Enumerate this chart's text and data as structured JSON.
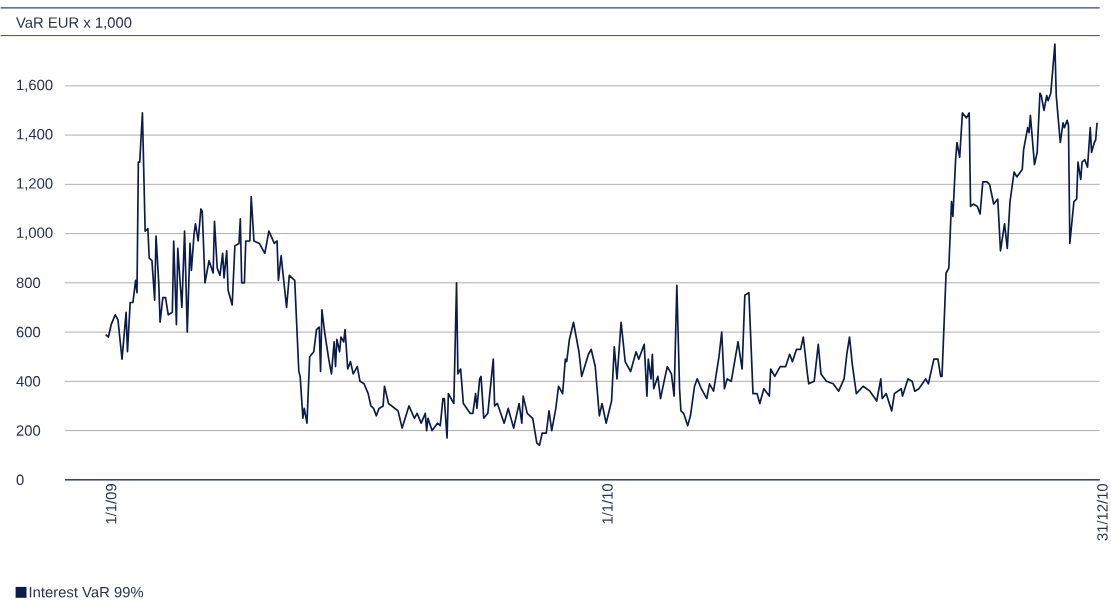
{
  "chart_data": {
    "type": "line",
    "ylabel": "VaR EUR x 1,000",
    "x": [
      "2009-01-01",
      "2009-01-03",
      "2009-01-05",
      "2009-01-08",
      "2009-01-10",
      "2009-01-13",
      "2009-01-16",
      "2009-01-17",
      "2009-01-19",
      "2009-01-21",
      "2009-01-23",
      "2009-01-24",
      "2009-01-25",
      "2009-01-26",
      "2009-01-28",
      "2009-01-30",
      "2009-02-01",
      "2009-02-02",
      "2009-02-04",
      "2009-02-06",
      "2009-02-07",
      "2009-02-09",
      "2009-02-10",
      "2009-02-12",
      "2009-02-14",
      "2009-02-16",
      "2009-02-19",
      "2009-02-20",
      "2009-02-22",
      "2009-02-23",
      "2009-02-26",
      "2009-02-28",
      "2009-03-02",
      "2009-03-04",
      "2009-03-05",
      "2009-03-07",
      "2009-03-08",
      "2009-03-10",
      "2009-03-12",
      "2009-03-13",
      "2009-03-15",
      "2009-03-18",
      "2009-03-21",
      "2009-03-22",
      "2009-03-24",
      "2009-03-26",
      "2009-03-28",
      "2009-03-29",
      "2009-03-31",
      "2009-04-01",
      "2009-04-04",
      "2009-04-06",
      "2009-04-09",
      "2009-04-10",
      "2009-04-11",
      "2009-04-13",
      "2009-04-14",
      "2009-04-17",
      "2009-04-18",
      "2009-04-20",
      "2009-04-24",
      "2009-04-28",
      "2009-05-01",
      "2009-05-05",
      "2009-05-07",
      "2009-05-08",
      "2009-05-10",
      "2009-05-14",
      "2009-05-16",
      "2009-05-20",
      "2009-05-23",
      "2009-05-24",
      "2009-05-26",
      "2009-05-27",
      "2009-05-29",
      "2009-05-31",
      "2009-06-03",
      "2009-06-05",
      "2009-06-07",
      "2009-06-08",
      "2009-06-09",
      "2009-06-11",
      "2009-06-14",
      "2009-06-16",
      "2009-06-18",
      "2009-06-19",
      "2009-06-20",
      "2009-06-22",
      "2009-06-23",
      "2009-06-25",
      "2009-06-26",
      "2009-06-28",
      "2009-06-30",
      "2009-07-02",
      "2009-07-05",
      "2009-07-07",
      "2009-07-10",
      "2009-07-13",
      "2009-07-15",
      "2009-07-17",
      "2009-07-19",
      "2009-07-21",
      "2009-07-24",
      "2009-07-25",
      "2009-07-28",
      "2009-08-04",
      "2009-08-07",
      "2009-08-12",
      "2009-08-16",
      "2009-08-18",
      "2009-08-21",
      "2009-08-24",
      "2009-08-25",
      "2009-08-26",
      "2009-08-29",
      "2009-09-02",
      "2009-09-04",
      "2009-09-06",
      "2009-09-07",
      "2009-09-09",
      "2009-09-10",
      "2009-09-14",
      "2009-09-16",
      "2009-09-17",
      "2009-09-19",
      "2009-09-21",
      "2009-09-26",
      "2009-09-28",
      "2009-09-30",
      "2009-10-01",
      "2009-10-03",
      "2009-10-04",
      "2009-10-06",
      "2009-10-09",
      "2009-10-13",
      "2009-10-14",
      "2009-10-16",
      "2009-10-21",
      "2009-10-24",
      "2009-10-28",
      "2009-11-01",
      "2009-11-03",
      "2009-11-04",
      "2009-11-07",
      "2009-11-11",
      "2009-11-14",
      "2009-11-16",
      "2009-11-18",
      "2009-11-21",
      "2009-11-23",
      "2009-11-25",
      "2009-11-28",
      "2009-11-30",
      "2009-12-03",
      "2009-12-05",
      "2009-12-06",
      "2009-12-08",
      "2009-12-11",
      "2009-12-15",
      "2009-12-17",
      "2009-12-22",
      "2009-12-24",
      "2009-12-27",
      "2009-12-30",
      "2010-01-01",
      "2010-01-04",
      "2010-01-08",
      "2010-01-10",
      "2010-01-12",
      "2010-01-15",
      "2010-01-18",
      "2010-01-22",
      "2010-01-26",
      "2010-01-28",
      "2010-02-01",
      "2010-02-03",
      "2010-02-04",
      "2010-02-06",
      "2010-02-07",
      "2010-02-08",
      "2010-02-11",
      "2010-02-13",
      "2010-02-16",
      "2010-02-18",
      "2010-02-21",
      "2010-02-23",
      "2010-02-25",
      "2010-02-27",
      "2010-02-28",
      "2010-03-02",
      "2010-03-05",
      "2010-03-07",
      "2010-03-10",
      "2010-03-12",
      "2010-03-15",
      "2010-03-19",
      "2010-03-21",
      "2010-03-24",
      "2010-03-28",
      "2010-03-30",
      "2010-04-01",
      "2010-04-03",
      "2010-04-06",
      "2010-04-11",
      "2010-04-14",
      "2010-04-16",
      "2010-04-19",
      "2010-04-22",
      "2010-04-25",
      "2010-04-27",
      "2010-04-30",
      "2010-05-04",
      "2010-05-05",
      "2010-05-08",
      "2010-05-12",
      "2010-05-16",
      "2010-05-19",
      "2010-05-21",
      "2010-05-24",
      "2010-05-27",
      "2010-05-29",
      "2010-06-01",
      "2010-06-02",
      "2010-06-06",
      "2010-06-09",
      "2010-06-11",
      "2010-06-15",
      "2010-06-20",
      "2010-06-24",
      "2010-06-28",
      "2010-06-30",
      "2010-07-02",
      "2010-07-04",
      "2010-07-07",
      "2010-07-12",
      "2010-07-17",
      "2010-07-22",
      "2010-07-25",
      "2010-07-26",
      "2010-07-29",
      "2010-08-02",
      "2010-08-04",
      "2010-08-09",
      "2010-08-10",
      "2010-08-14",
      "2010-08-17",
      "2010-08-19",
      "2010-08-22",
      "2010-08-27",
      "2010-08-29",
      "2010-09-02",
      "2010-09-05",
      "2010-09-07",
      "2010-09-08",
      "2010-09-11",
      "2010-09-13",
      "2010-09-15",
      "2010-09-16",
      "2010-09-18",
      "2010-09-19",
      "2010-09-21",
      "2010-09-23",
      "2010-09-26",
      "2010-09-28",
      "2010-09-29",
      "2010-10-01",
      "2010-10-04",
      "2010-10-06",
      "2010-10-08",
      "2010-10-11",
      "2010-10-13",
      "2010-10-16",
      "2010-10-19",
      "2010-10-21",
      "2010-10-24",
      "2010-10-26",
      "2010-10-28",
      "2010-10-31",
      "2010-11-02",
      "2010-11-06",
      "2010-11-07",
      "2010-11-10",
      "2010-11-11",
      "2010-11-12",
      "2010-11-15",
      "2010-11-17",
      "2010-11-19",
      "2010-11-20",
      "2010-11-22",
      "2010-11-24",
      "2010-11-25",
      "2010-11-27",
      "2010-11-30",
      "2010-12-01",
      "2010-12-04",
      "2010-12-06",
      "2010-12-07",
      "2010-12-09",
      "2010-12-10",
      "2010-12-11",
      "2010-12-14",
      "2010-12-16",
      "2010-12-17",
      "2010-12-19",
      "2010-12-20",
      "2010-12-22",
      "2010-12-24",
      "2010-12-26",
      "2010-12-27",
      "2010-12-29",
      "2010-12-30",
      "2010-12-31"
    ],
    "series": [
      {
        "name": "Interest VaR 99%",
        "color": "#0c1c4a",
        "values": [
          590,
          580,
          630,
          670,
          650,
          490,
          680,
          520,
          720,
          720,
          810,
          760,
          1290,
          1290,
          1490,
          1010,
          1020,
          900,
          890,
          730,
          990,
          800,
          640,
          740,
          740,
          670,
          680,
          970,
          630,
          940,
          700,
          1010,
          600,
          960,
          850,
          1000,
          1040,
          970,
          1100,
          1090,
          800,
          890,
          840,
          1050,
          860,
          830,
          920,
          820,
          930,
          770,
          710,
          950,
          960,
          1060,
          800,
          800,
          970,
          970,
          1150,
          970,
          960,
          920,
          1010,
          960,
          970,
          810,
          910,
          700,
          830,
          810,
          440,
          420,
          250,
          290,
          230,
          500,
          520,
          610,
          620,
          440,
          690,
          600,
          490,
          430,
          560,
          460,
          570,
          520,
          580,
          560,
          610,
          450,
          480,
          430,
          460,
          400,
          390,
          350,
          300,
          290,
          260,
          290,
          300,
          380,
          310,
          280,
          210,
          300,
          250,
          270,
          230,
          270,
          200,
          250,
          200,
          230,
          220,
          330,
          330,
          170,
          350,
          310,
          800,
          430,
          450,
          310,
          270,
          270,
          350,
          290,
          410,
          420,
          250,
          270,
          490,
          300,
          310,
          230,
          290,
          210,
          310,
          230,
          340,
          270,
          250,
          150,
          140,
          190,
          190,
          280,
          200,
          290,
          380,
          350,
          490,
          480,
          570,
          640,
          520,
          420,
          510,
          530,
          460,
          260,
          310,
          230,
          320,
          540,
          410,
          640,
          480,
          440,
          520,
          490,
          550,
          340,
          490,
          410,
          510,
          370,
          420,
          330,
          410,
          460,
          430,
          340,
          790,
          370,
          280,
          270,
          220,
          260,
          380,
          410,
          370,
          330,
          390,
          360,
          500,
          600,
          370,
          410,
          400,
          560,
          450,
          750,
          760,
          350,
          350,
          310,
          370,
          340,
          450,
          420,
          460,
          460,
          510,
          480,
          530,
          530,
          580,
          430,
          390,
          400,
          550,
          430,
          400,
          390,
          360,
          410,
          510,
          580,
          470,
          350,
          380,
          360,
          320,
          410,
          330,
          350,
          280,
          350,
          370,
          340,
          410,
          400,
          360,
          370,
          410,
          390,
          490,
          490,
          420,
          420,
          840,
          860,
          1130,
          1070,
          1300,
          1370,
          1310,
          1490,
          1470,
          1490,
          1110,
          1120,
          1110,
          1080,
          1210,
          1210,
          1200,
          1120,
          1140,
          930,
          1040,
          940,
          1130,
          1250,
          1230,
          1260,
          1340,
          1430,
          1410,
          1480,
          1280,
          1330,
          1570,
          1560,
          1500,
          1560,
          1540,
          1570,
          1770,
          1560,
          1370,
          1450,
          1430,
          1460,
          1440,
          960,
          1130,
          1140,
          1290,
          1220,
          1290,
          1300,
          1270,
          1430,
          1330,
          1370,
          1380,
          1450
        ]
      }
    ],
    "xlim": [
      "2008-12-02",
      "2011-01-02"
    ],
    "xticks": [
      {
        "value": "2009-01-01",
        "label": "1/1/09"
      },
      {
        "value": "2010-01-01",
        "label": "1/1/10"
      },
      {
        "value": "2010-12-31",
        "label": "31/12/10"
      }
    ],
    "ylim": [
      0,
      1800
    ],
    "yticks": [
      0,
      200,
      400,
      600,
      800,
      {
        "value": 1000,
        "label": "1,000"
      },
      {
        "value": 1200,
        "label": "1,200"
      },
      {
        "value": 1400,
        "label": "1,400"
      },
      {
        "value": 1600,
        "label": "1,600"
      }
    ],
    "grid": "y",
    "legend": "bottom left",
    "marker": "none",
    "line_style": "solid"
  }
}
